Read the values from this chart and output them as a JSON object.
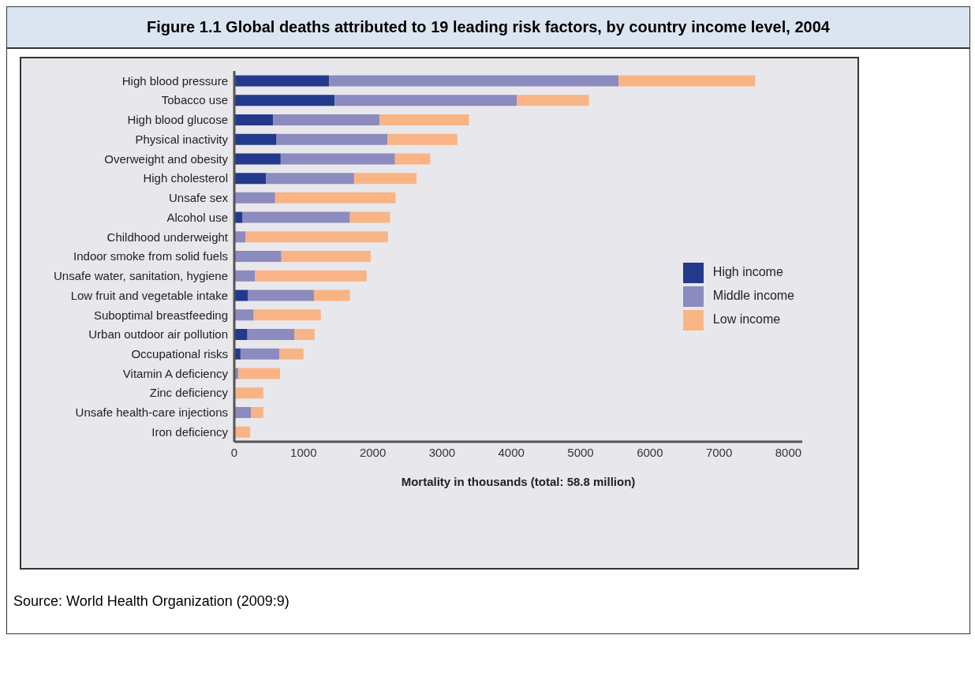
{
  "chart_data": {
    "type": "bar",
    "orientation": "horizontal",
    "stacked": true,
    "title": "Figure 1.1 Global deaths attributed to 19 leading risk factors, by country income level, 2004",
    "xlabel": "Mortality in thousands (total: 58.8 million)",
    "categories": [
      "High blood pressure",
      "Tobacco use",
      "High blood glucose",
      "Physical inactivity",
      "Overweight and obesity",
      "High cholesterol",
      "Unsafe sex",
      "Alcohol use",
      "Childhood underweight",
      "Indoor smoke from solid fuels",
      "Unsafe water, sanitation, hygiene",
      "Low fruit and vegetable intake",
      "Suboptimal breastfeeding",
      "Urban outdoor air pollution",
      "Occupational risks",
      "Vitamin A deficiency",
      "Zinc deficiency",
      "Unsafe health-care injections",
      "Iron deficiency"
    ],
    "series": [
      {
        "name": "High income",
        "color": "#233a8c",
        "values": [
          1370,
          1450,
          560,
          610,
          670,
          460,
          null,
          120,
          0,
          0,
          0,
          200,
          0,
          190,
          90,
          0,
          0,
          0,
          0
        ]
      },
      {
        "name": "Middle income",
        "color": "#8b8bc0",
        "values": [
          4180,
          2630,
          1540,
          1600,
          1650,
          1270,
          590,
          1550,
          160,
          680,
          300,
          950,
          280,
          680,
          560,
          60,
          null,
          240,
          null
        ]
      },
      {
        "name": "Low income",
        "color": "#f9b486",
        "values": [
          1970,
          1040,
          1290,
          1010,
          510,
          900,
          1740,
          580,
          2060,
          1290,
          1610,
          520,
          970,
          290,
          350,
          600,
          420,
          180,
          230
        ]
      }
    ],
    "xlim": [
      0,
      8200
    ],
    "xticks": [
      0,
      1000,
      2000,
      3000,
      4000,
      5000,
      6000,
      7000,
      8000
    ],
    "grid": false,
    "legend": "right",
    "annotations": [
      "Source: World Health Organization (2009:9)"
    ]
  }
}
